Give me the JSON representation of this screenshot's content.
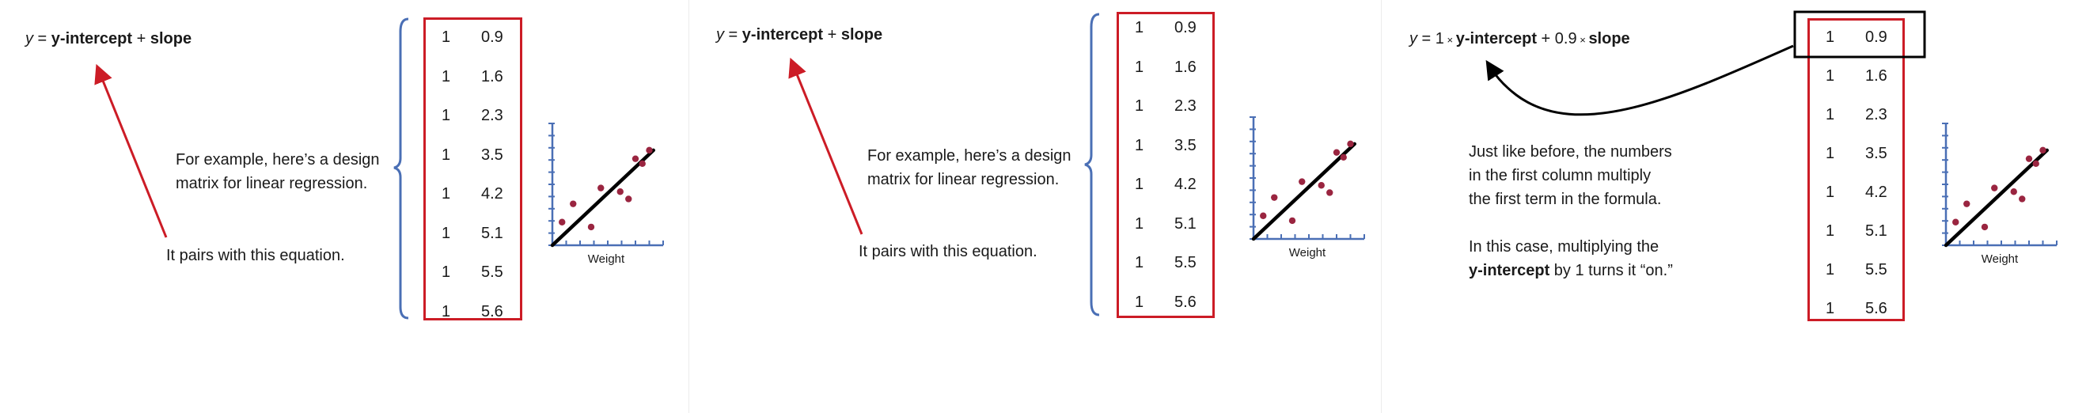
{
  "equation_basic": {
    "y": "y",
    "equals": " = ",
    "term1": "y-intercept",
    "plus": " + ",
    "term2": "slope"
  },
  "equation_weighted": {
    "y": "y",
    "equals": " = 1",
    "times1": " × ",
    "term1": "y-intercept",
    "plus_coef": " + 0.9",
    "times2": " × ",
    "term2": "slope"
  },
  "captions": {
    "design_matrix_line1": "For example, here’s a design",
    "design_matrix_line2": "matrix for linear regression.",
    "pairs_with": "It pairs with this equation.",
    "explain_line1": "Just like before, the numbers",
    "explain_line2": "in the first column multiply",
    "explain_line3": "the first term in the formula.",
    "explain_line4": "In this case, multiplying the",
    "explain_line5_bold": "y-intercept",
    "explain_line5_rest": " by 1 turns it “on.”"
  },
  "design_matrix": {
    "rows": [
      [
        "1",
        "0.9"
      ],
      [
        "1",
        "1.6"
      ],
      [
        "1",
        "2.3"
      ],
      [
        "1",
        "3.5"
      ],
      [
        "1",
        "4.2"
      ],
      [
        "1",
        "5.1"
      ],
      [
        "1",
        "5.5"
      ],
      [
        "1",
        "5.6"
      ]
    ]
  },
  "mini_chart": {
    "xlabel": "Weight"
  },
  "chart_data": {
    "type": "scatter",
    "xlabel": "Weight",
    "ylabel": "",
    "points": [
      {
        "x": 0.7,
        "y": 1.9
      },
      {
        "x": 1.5,
        "y": 3.4
      },
      {
        "x": 2.8,
        "y": 1.5
      },
      {
        "x": 3.5,
        "y": 4.7
      },
      {
        "x": 4.9,
        "y": 4.4
      },
      {
        "x": 5.5,
        "y": 3.8
      },
      {
        "x": 6.0,
        "y": 7.1
      },
      {
        "x": 6.5,
        "y": 6.7
      },
      {
        "x": 7.0,
        "y": 7.8
      }
    ],
    "fit_line": {
      "x": [
        0,
        7.3
      ],
      "y": [
        0,
        7.8
      ]
    },
    "xlim": [
      0,
      8
    ],
    "ylim": [
      0,
      10
    ],
    "colors": {
      "point": "#9a2540",
      "line": "#000000",
      "axis": "#4a6fb5"
    }
  },
  "colors": {
    "matrix_border": "#cc1c26",
    "arrow_red": "#cc1c26",
    "brace": "#4a6fb5",
    "highlight_box": "#000000"
  }
}
